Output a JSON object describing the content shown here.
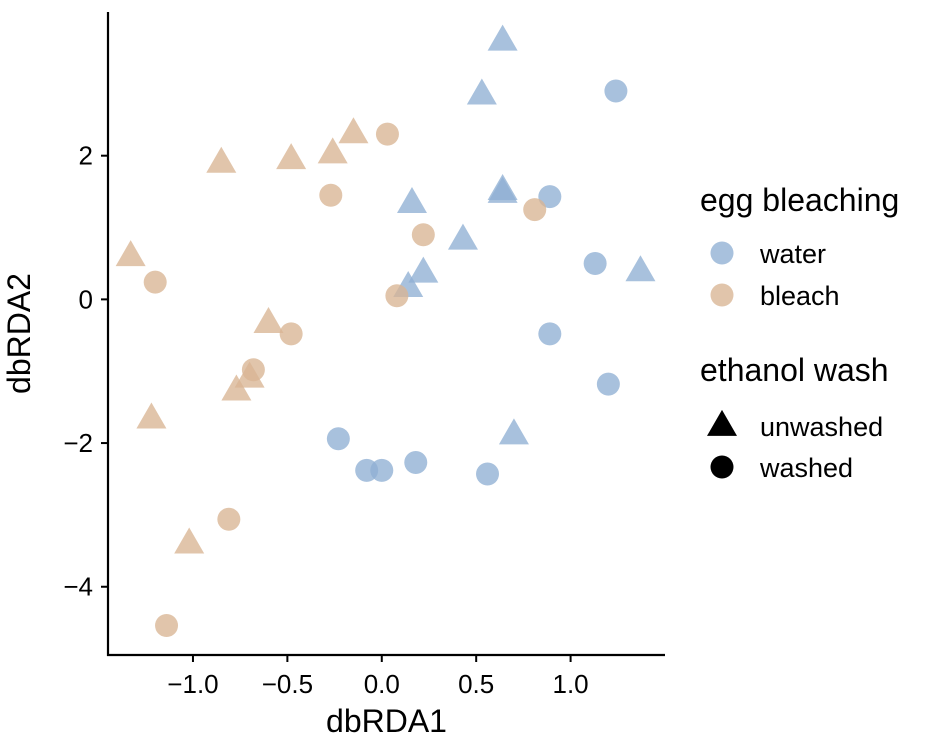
{
  "chart_data": {
    "type": "scatter",
    "xlabel": "dbRDA1",
    "ylabel": "dbRDA2",
    "xlim": [
      -1.45,
      1.5
    ],
    "ylim": [
      -4.95,
      4.0
    ],
    "xticks": [
      -1.0,
      -0.5,
      0.0,
      0.5,
      1.0
    ],
    "xtick_labels": [
      "−1.0",
      "−0.5",
      "0.0",
      "0.5",
      "1.0"
    ],
    "yticks": [
      -4,
      -2,
      0,
      2
    ],
    "ytick_labels": [
      "−4",
      "−2",
      "0",
      "2"
    ],
    "grid": false,
    "legend_position": "right",
    "colors": {
      "water": "#8fafd4",
      "bleach": "#d8b593"
    },
    "legend": {
      "color_title": "egg bleaching",
      "color_entries": [
        {
          "label": "water",
          "key": "water"
        },
        {
          "label": "bleach",
          "key": "bleach"
        }
      ],
      "shape_title": "ethanol wash",
      "shape_entries": [
        {
          "label": "unwashed",
          "shape": "triangle"
        },
        {
          "label": "washed",
          "shape": "circle"
        }
      ]
    },
    "series": [
      {
        "color": "water",
        "shape": "triangle",
        "points": [
          [
            0.64,
            3.6
          ],
          [
            0.53,
            2.85
          ],
          [
            0.64,
            1.52
          ],
          [
            0.64,
            1.48
          ],
          [
            0.16,
            1.34
          ],
          [
            0.43,
            0.83
          ],
          [
            0.22,
            0.37
          ],
          [
            0.14,
            0.17
          ],
          [
            1.37,
            0.39
          ],
          [
            0.7,
            -1.88
          ]
        ]
      },
      {
        "color": "water",
        "shape": "circle",
        "points": [
          [
            1.24,
            2.9
          ],
          [
            0.89,
            1.43
          ],
          [
            1.13,
            0.5
          ],
          [
            0.89,
            -0.48
          ],
          [
            1.2,
            -1.18
          ],
          [
            -0.23,
            -1.94
          ],
          [
            -0.08,
            -2.38
          ],
          [
            0.0,
            -2.38
          ],
          [
            0.18,
            -2.27
          ],
          [
            0.56,
            -2.43
          ]
        ]
      },
      {
        "color": "bleach",
        "shape": "triangle",
        "points": [
          [
            -0.15,
            2.31
          ],
          [
            -0.26,
            2.03
          ],
          [
            -0.48,
            1.95
          ],
          [
            -0.85,
            1.9
          ],
          [
            -1.33,
            0.6
          ],
          [
            -0.6,
            -0.33
          ],
          [
            -0.7,
            -1.09
          ],
          [
            -0.77,
            -1.27
          ],
          [
            -1.22,
            -1.66
          ],
          [
            -1.02,
            -3.4
          ]
        ]
      },
      {
        "color": "bleach",
        "shape": "circle",
        "points": [
          [
            0.03,
            2.3
          ],
          [
            -0.27,
            1.45
          ],
          [
            0.22,
            0.9
          ],
          [
            0.81,
            1.25
          ],
          [
            0.08,
            0.05
          ],
          [
            -1.2,
            0.24
          ],
          [
            -0.48,
            -0.48
          ],
          [
            -0.68,
            -0.98
          ],
          [
            -0.81,
            -3.06
          ],
          [
            -1.14,
            -4.54
          ]
        ]
      }
    ]
  }
}
